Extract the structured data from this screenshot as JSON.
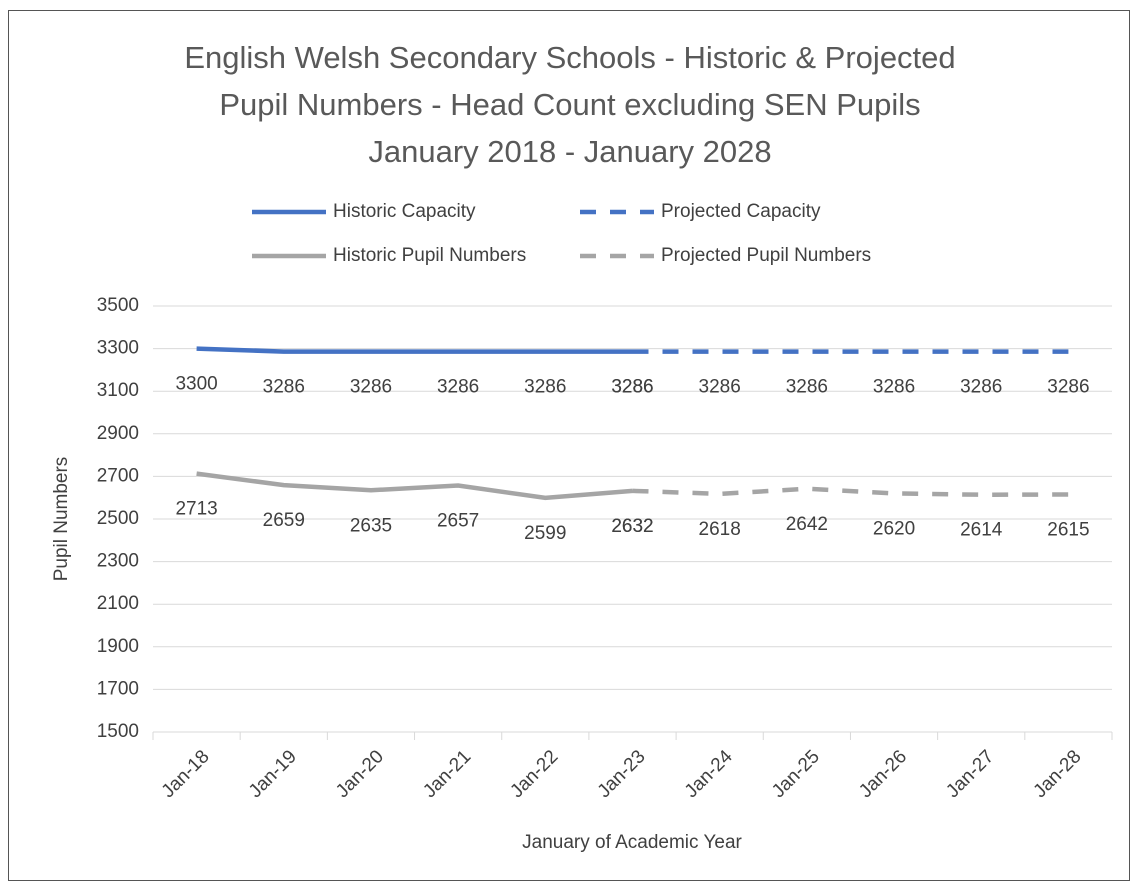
{
  "chart_data": {
    "type": "line",
    "title": [
      "English Welsh Secondary Schools - Historic & Projected",
      "Pupil Numbers - Head Count excluding SEN Pupils",
      "January 2018 - January 2028"
    ],
    "x_label": "January of Academic Year",
    "y_label": "Pupil Numbers",
    "categories": [
      "Jan-18",
      "Jan-19",
      "Jan-20",
      "Jan-21",
      "Jan-22",
      "Jan-23",
      "Jan-24",
      "Jan-25",
      "Jan-26",
      "Jan-27",
      "Jan-28"
    ],
    "series": [
      {
        "name": "Historic Capacity",
        "color": "#4472c4",
        "dashed": false,
        "values": [
          3300,
          3286,
          3286,
          3286,
          3286,
          3286,
          null,
          null,
          null,
          null,
          null
        ]
      },
      {
        "name": "Projected Capacity",
        "color": "#4472c4",
        "dashed": true,
        "values": [
          null,
          null,
          null,
          null,
          null,
          3286,
          3286,
          3286,
          3286,
          3286,
          3286
        ]
      },
      {
        "name": "Historic Pupil Numbers",
        "color": "#a5a5a5",
        "dashed": false,
        "values": [
          2713,
          2659,
          2635,
          2657,
          2599,
          2632,
          null,
          null,
          null,
          null,
          null
        ]
      },
      {
        "name": "Projected Pupil Numbers",
        "color": "#a5a5a5",
        "dashed": true,
        "values": [
          null,
          null,
          null,
          null,
          null,
          2632,
          2618,
          2642,
          2620,
          2614,
          2615
        ]
      }
    ],
    "ylim": [
      1500,
      3500
    ],
    "yticks": [
      1500,
      1700,
      1900,
      2100,
      2300,
      2500,
      2700,
      2900,
      3100,
      3300,
      3500
    ],
    "grid": true,
    "legend": "top"
  }
}
